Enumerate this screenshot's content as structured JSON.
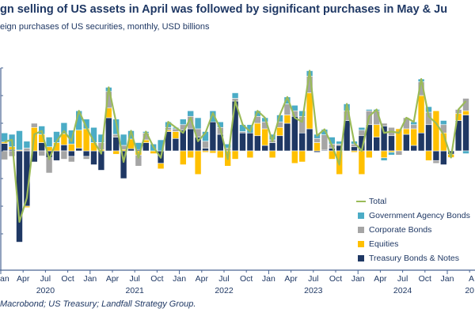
{
  "title": "gn selling of US assets in April was followed by significant purchases in May & Ju",
  "subtitle": "eign purchases of US securities, monthly, USD billions",
  "source": "Macrobond; US Treasury; Landfall Strategy Group.",
  "chart_data": {
    "type": "bar",
    "subtype": "stacked bar with line",
    "title": "gn selling of US assets in April was followed by significant purchases in May & Ju",
    "ylabel": "USD billions",
    "ylim": [
      -330,
      300
    ],
    "yticks": [
      -300,
      -200,
      -100,
      0,
      100,
      200,
      300
    ],
    "start_month": "2020-01",
    "x_tick_labels": [
      "an",
      "Apr",
      "Jul",
      "Oct",
      "Jan",
      "Apr",
      "Jul",
      "Oct",
      "Jan",
      "Apr",
      "Jul",
      "Oct",
      "Jan",
      "Apr",
      "Jul",
      "Oct",
      "Jan",
      "Apr",
      "Jul",
      "Oct",
      "Jan",
      "A"
    ],
    "year_labels": [
      "2020",
      "2021",
      "2022",
      "2023",
      "2024",
      "20"
    ],
    "legend_position": "bottom-right",
    "series": [
      {
        "name": "Treasury Bonds & Notes",
        "color": "#1f3864",
        "values": [
          27,
          5,
          -330,
          -200,
          -40,
          30,
          -25,
          -35,
          22,
          -20,
          10,
          -20,
          -50,
          -70,
          120,
          50,
          -100,
          8,
          5,
          30,
          0,
          -45,
          70,
          45,
          75,
          80,
          50,
          10,
          105,
          60,
          0,
          180,
          65,
          65,
          55,
          20,
          30,
          55,
          100,
          125,
          65,
          80,
          -5,
          3,
          10,
          20,
          110,
          15,
          55,
          95,
          50,
          90,
          55,
          0,
          60,
          20,
          65,
          95,
          -35,
          -50,
          -12,
          110,
          130
        ]
      },
      {
        "name": "Equities",
        "color": "#ffc000",
        "values": [
          5,
          10,
          3,
          -5,
          85,
          30,
          15,
          30,
          40,
          25,
          65,
          80,
          30,
          5,
          35,
          -12,
          5,
          35,
          -15,
          10,
          -10,
          -20,
          5,
          25,
          -50,
          -25,
          -85,
          -5,
          -8,
          -25,
          -55,
          -30,
          0,
          -25,
          45,
          60,
          -25,
          30,
          30,
          -45,
          -40,
          130,
          30,
          0,
          -30,
          -85,
          0,
          -5,
          -85,
          -25,
          45,
          -25,
          -5,
          80,
          20,
          60,
          135,
          -35,
          145,
          65,
          -12,
          25,
          15
        ]
      },
      {
        "name": "Corporate Bonds",
        "color": "#a5a5a5",
        "values": [
          -32,
          -20,
          0,
          10,
          15,
          -18,
          -55,
          0,
          -30,
          -20,
          0,
          -10,
          0,
          25,
          60,
          10,
          15,
          0,
          -40,
          25,
          0,
          0,
          10,
          10,
          20,
          45,
          30,
          25,
          0,
          25,
          10,
          10,
          5,
          0,
          25,
          25,
          10,
          20,
          40,
          20,
          60,
          60,
          15,
          55,
          15,
          5,
          35,
          10,
          20,
          50,
          50,
          10,
          30,
          -15,
          40,
          15,
          50,
          45,
          -10,
          30,
          0,
          15,
          45
        ]
      },
      {
        "name": "Government Agency Bonds",
        "color": "#4bacc6",
        "values": [
          33,
          45,
          70,
          25,
          0,
          30,
          35,
          40,
          40,
          50,
          70,
          35,
          55,
          30,
          15,
          55,
          40,
          30,
          25,
          5,
          25,
          40,
          20,
          5,
          20,
          20,
          40,
          35,
          40,
          20,
          15,
          20,
          25,
          30,
          20,
          15,
          20,
          25,
          25,
          20,
          20,
          20,
          15,
          20,
          25,
          10,
          25,
          10,
          10,
          5,
          5,
          -10,
          -10,
          0,
          0,
          10,
          10,
          20,
          0,
          15,
          0,
          0,
          -10
        ]
      },
      {
        "name": "Total",
        "color": "#9bbb59",
        "type": "line",
        "values": [
          33,
          40,
          -257,
          -170,
          60,
          72,
          -30,
          35,
          72,
          35,
          145,
          85,
          35,
          -10,
          230,
          103,
          -40,
          73,
          -25,
          70,
          15,
          -25,
          105,
          85,
          65,
          120,
          35,
          65,
          137,
          80,
          -30,
          180,
          95,
          70,
          145,
          120,
          35,
          130,
          195,
          120,
          105,
          290,
          55,
          78,
          20,
          -50,
          170,
          30,
          0,
          125,
          150,
          65,
          70,
          65,
          120,
          105,
          260,
          125,
          100,
          60,
          -24,
          150,
          180
        ]
      }
    ]
  }
}
